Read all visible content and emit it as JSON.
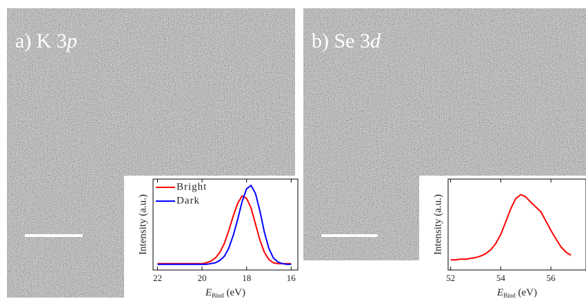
{
  "panels": [
    {
      "label": "a) K 3",
      "label_italic": "p"
    },
    {
      "label": "b) Se 3",
      "label_italic": "d"
    }
  ],
  "chart_data": [
    {
      "type": "line",
      "ylabel": "Intensity (a.u.)",
      "xlabel": "E",
      "xlabel_subscript": "Bind",
      "xlabel_unit": "(eV)",
      "x": [
        22,
        21.8,
        21.6,
        21.4,
        21.2,
        21,
        20.8,
        20.6,
        20.4,
        20.2,
        20,
        19.8,
        19.6,
        19.4,
        19.2,
        19,
        18.8,
        18.6,
        18.4,
        18.2,
        18,
        17.8,
        17.6,
        17.4,
        17.2,
        17,
        16.8,
        16.6,
        16.4,
        16.2,
        16
      ],
      "xlim": [
        22.2,
        15.7
      ],
      "xticks": [
        22,
        20,
        18,
        16
      ],
      "ylim": [
        -0.05,
        1.08
      ],
      "legend": "upper left",
      "series": [
        {
          "name": "Bright",
          "color": "#ff0000",
          "values": [
            0.03,
            0.03,
            0.03,
            0.03,
            0.03,
            0.03,
            0.03,
            0.03,
            0.03,
            0.03,
            0.03,
            0.04,
            0.06,
            0.1,
            0.17,
            0.28,
            0.44,
            0.62,
            0.78,
            0.87,
            0.84,
            0.72,
            0.52,
            0.32,
            0.17,
            0.08,
            0.04,
            0.03,
            0.03,
            0.03,
            0.03
          ]
        },
        {
          "name": "Dark",
          "color": "#0000ff",
          "values": [
            0.02,
            0.02,
            0.02,
            0.02,
            0.02,
            0.02,
            0.02,
            0.02,
            0.02,
            0.02,
            0.02,
            0.02,
            0.03,
            0.04,
            0.07,
            0.12,
            0.22,
            0.38,
            0.58,
            0.8,
            0.96,
            1.0,
            0.9,
            0.68,
            0.42,
            0.22,
            0.1,
            0.05,
            0.03,
            0.02,
            0.02
          ]
        }
      ]
    },
    {
      "type": "line",
      "ylabel": "Intensity (a.u.)",
      "xlabel": "E",
      "xlabel_subscript": "Bind",
      "xlabel_unit": "(eV)",
      "x": [
        52,
        52.2,
        52.4,
        52.6,
        52.8,
        53,
        53.2,
        53.4,
        53.6,
        53.8,
        54,
        54.2,
        54.4,
        54.6,
        54.8,
        55,
        55.2,
        55.4,
        55.6,
        55.8,
        56,
        56.2,
        56.4,
        56.6,
        56.8
      ],
      "xlim": [
        51.9,
        57.4
      ],
      "xticks": [
        52,
        54,
        56
      ],
      "ylim": [
        -0.07,
        1.1
      ],
      "series": [
        {
          "color": "#ff0000",
          "values": [
            0.06,
            0.06,
            0.07,
            0.07,
            0.08,
            0.09,
            0.11,
            0.14,
            0.19,
            0.27,
            0.39,
            0.55,
            0.72,
            0.85,
            0.9,
            0.87,
            0.8,
            0.74,
            0.68,
            0.56,
            0.44,
            0.33,
            0.23,
            0.16,
            0.12
          ]
        }
      ]
    }
  ]
}
